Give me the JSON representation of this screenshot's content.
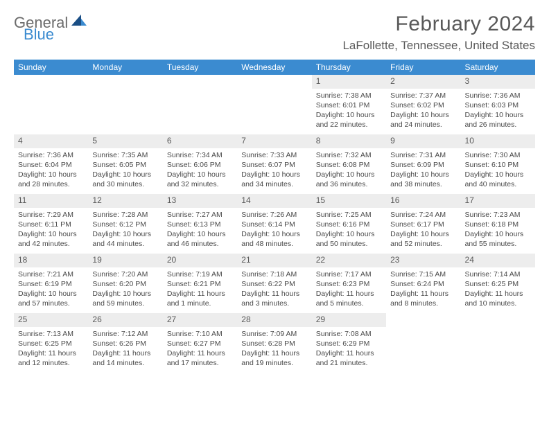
{
  "brand": {
    "word1": "General",
    "word2": "Blue",
    "colors": {
      "general": "#6b6b6b",
      "blue": "#3b8bd0"
    }
  },
  "title": "February 2024",
  "location": "LaFollette, Tennessee, United States",
  "theme": {
    "header_bg": "#3b8bd0",
    "header_fg": "#ffffff",
    "daynum_bg": "#ededed",
    "text_color": "#4a4a4a",
    "title_color": "#595959",
    "week_border_color": "#3b8bd0",
    "font_family": "Arial"
  },
  "columns": [
    "Sunday",
    "Monday",
    "Tuesday",
    "Wednesday",
    "Thursday",
    "Friday",
    "Saturday"
  ],
  "weeks": [
    [
      {
        "n": "",
        "sunrise": "",
        "sunset": "",
        "daylight": ""
      },
      {
        "n": "",
        "sunrise": "",
        "sunset": "",
        "daylight": ""
      },
      {
        "n": "",
        "sunrise": "",
        "sunset": "",
        "daylight": ""
      },
      {
        "n": "",
        "sunrise": "",
        "sunset": "",
        "daylight": ""
      },
      {
        "n": "1",
        "sunrise": "Sunrise: 7:38 AM",
        "sunset": "Sunset: 6:01 PM",
        "daylight": "Daylight: 10 hours and 22 minutes."
      },
      {
        "n": "2",
        "sunrise": "Sunrise: 7:37 AM",
        "sunset": "Sunset: 6:02 PM",
        "daylight": "Daylight: 10 hours and 24 minutes."
      },
      {
        "n": "3",
        "sunrise": "Sunrise: 7:36 AM",
        "sunset": "Sunset: 6:03 PM",
        "daylight": "Daylight: 10 hours and 26 minutes."
      }
    ],
    [
      {
        "n": "4",
        "sunrise": "Sunrise: 7:36 AM",
        "sunset": "Sunset: 6:04 PM",
        "daylight": "Daylight: 10 hours and 28 minutes."
      },
      {
        "n": "5",
        "sunrise": "Sunrise: 7:35 AM",
        "sunset": "Sunset: 6:05 PM",
        "daylight": "Daylight: 10 hours and 30 minutes."
      },
      {
        "n": "6",
        "sunrise": "Sunrise: 7:34 AM",
        "sunset": "Sunset: 6:06 PM",
        "daylight": "Daylight: 10 hours and 32 minutes."
      },
      {
        "n": "7",
        "sunrise": "Sunrise: 7:33 AM",
        "sunset": "Sunset: 6:07 PM",
        "daylight": "Daylight: 10 hours and 34 minutes."
      },
      {
        "n": "8",
        "sunrise": "Sunrise: 7:32 AM",
        "sunset": "Sunset: 6:08 PM",
        "daylight": "Daylight: 10 hours and 36 minutes."
      },
      {
        "n": "9",
        "sunrise": "Sunrise: 7:31 AM",
        "sunset": "Sunset: 6:09 PM",
        "daylight": "Daylight: 10 hours and 38 minutes."
      },
      {
        "n": "10",
        "sunrise": "Sunrise: 7:30 AM",
        "sunset": "Sunset: 6:10 PM",
        "daylight": "Daylight: 10 hours and 40 minutes."
      }
    ],
    [
      {
        "n": "11",
        "sunrise": "Sunrise: 7:29 AM",
        "sunset": "Sunset: 6:11 PM",
        "daylight": "Daylight: 10 hours and 42 minutes."
      },
      {
        "n": "12",
        "sunrise": "Sunrise: 7:28 AM",
        "sunset": "Sunset: 6:12 PM",
        "daylight": "Daylight: 10 hours and 44 minutes."
      },
      {
        "n": "13",
        "sunrise": "Sunrise: 7:27 AM",
        "sunset": "Sunset: 6:13 PM",
        "daylight": "Daylight: 10 hours and 46 minutes."
      },
      {
        "n": "14",
        "sunrise": "Sunrise: 7:26 AM",
        "sunset": "Sunset: 6:14 PM",
        "daylight": "Daylight: 10 hours and 48 minutes."
      },
      {
        "n": "15",
        "sunrise": "Sunrise: 7:25 AM",
        "sunset": "Sunset: 6:16 PM",
        "daylight": "Daylight: 10 hours and 50 minutes."
      },
      {
        "n": "16",
        "sunrise": "Sunrise: 7:24 AM",
        "sunset": "Sunset: 6:17 PM",
        "daylight": "Daylight: 10 hours and 52 minutes."
      },
      {
        "n": "17",
        "sunrise": "Sunrise: 7:23 AM",
        "sunset": "Sunset: 6:18 PM",
        "daylight": "Daylight: 10 hours and 55 minutes."
      }
    ],
    [
      {
        "n": "18",
        "sunrise": "Sunrise: 7:21 AM",
        "sunset": "Sunset: 6:19 PM",
        "daylight": "Daylight: 10 hours and 57 minutes."
      },
      {
        "n": "19",
        "sunrise": "Sunrise: 7:20 AM",
        "sunset": "Sunset: 6:20 PM",
        "daylight": "Daylight: 10 hours and 59 minutes."
      },
      {
        "n": "20",
        "sunrise": "Sunrise: 7:19 AM",
        "sunset": "Sunset: 6:21 PM",
        "daylight": "Daylight: 11 hours and 1 minute."
      },
      {
        "n": "21",
        "sunrise": "Sunrise: 7:18 AM",
        "sunset": "Sunset: 6:22 PM",
        "daylight": "Daylight: 11 hours and 3 minutes."
      },
      {
        "n": "22",
        "sunrise": "Sunrise: 7:17 AM",
        "sunset": "Sunset: 6:23 PM",
        "daylight": "Daylight: 11 hours and 5 minutes."
      },
      {
        "n": "23",
        "sunrise": "Sunrise: 7:15 AM",
        "sunset": "Sunset: 6:24 PM",
        "daylight": "Daylight: 11 hours and 8 minutes."
      },
      {
        "n": "24",
        "sunrise": "Sunrise: 7:14 AM",
        "sunset": "Sunset: 6:25 PM",
        "daylight": "Daylight: 11 hours and 10 minutes."
      }
    ],
    [
      {
        "n": "25",
        "sunrise": "Sunrise: 7:13 AM",
        "sunset": "Sunset: 6:25 PM",
        "daylight": "Daylight: 11 hours and 12 minutes."
      },
      {
        "n": "26",
        "sunrise": "Sunrise: 7:12 AM",
        "sunset": "Sunset: 6:26 PM",
        "daylight": "Daylight: 11 hours and 14 minutes."
      },
      {
        "n": "27",
        "sunrise": "Sunrise: 7:10 AM",
        "sunset": "Sunset: 6:27 PM",
        "daylight": "Daylight: 11 hours and 17 minutes."
      },
      {
        "n": "28",
        "sunrise": "Sunrise: 7:09 AM",
        "sunset": "Sunset: 6:28 PM",
        "daylight": "Daylight: 11 hours and 19 minutes."
      },
      {
        "n": "29",
        "sunrise": "Sunrise: 7:08 AM",
        "sunset": "Sunset: 6:29 PM",
        "daylight": "Daylight: 11 hours and 21 minutes."
      },
      {
        "n": "",
        "sunrise": "",
        "sunset": "",
        "daylight": ""
      },
      {
        "n": "",
        "sunrise": "",
        "sunset": "",
        "daylight": ""
      }
    ]
  ]
}
